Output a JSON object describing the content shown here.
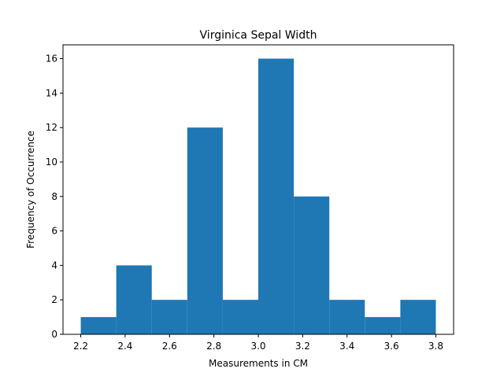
{
  "chart_data": {
    "type": "bar",
    "title": "Virginica Sepal Width",
    "xlabel": "Measurements in CM",
    "ylabel": "Frequency of Occurrence",
    "bin_edges": [
      2.2,
      2.36,
      2.52,
      2.68,
      2.84,
      3.0,
      3.16,
      3.32,
      3.48,
      3.64,
      3.8
    ],
    "values": [
      1,
      4,
      2,
      12,
      2,
      16,
      8,
      2,
      1,
      2
    ],
    "xlim": [
      2.12,
      3.88
    ],
    "ylim": [
      0,
      16.8
    ],
    "xticks": [
      "2.2",
      "2.4",
      "2.6",
      "2.8",
      "3.0",
      "3.2",
      "3.4",
      "3.6",
      "3.8"
    ],
    "yticks": [
      "0",
      "2",
      "4",
      "6",
      "8",
      "10",
      "12",
      "14",
      "16"
    ],
    "grid": false,
    "colors": {
      "bar": "#1f77b4",
      "axes": "#000000",
      "background": "#ffffff"
    }
  }
}
